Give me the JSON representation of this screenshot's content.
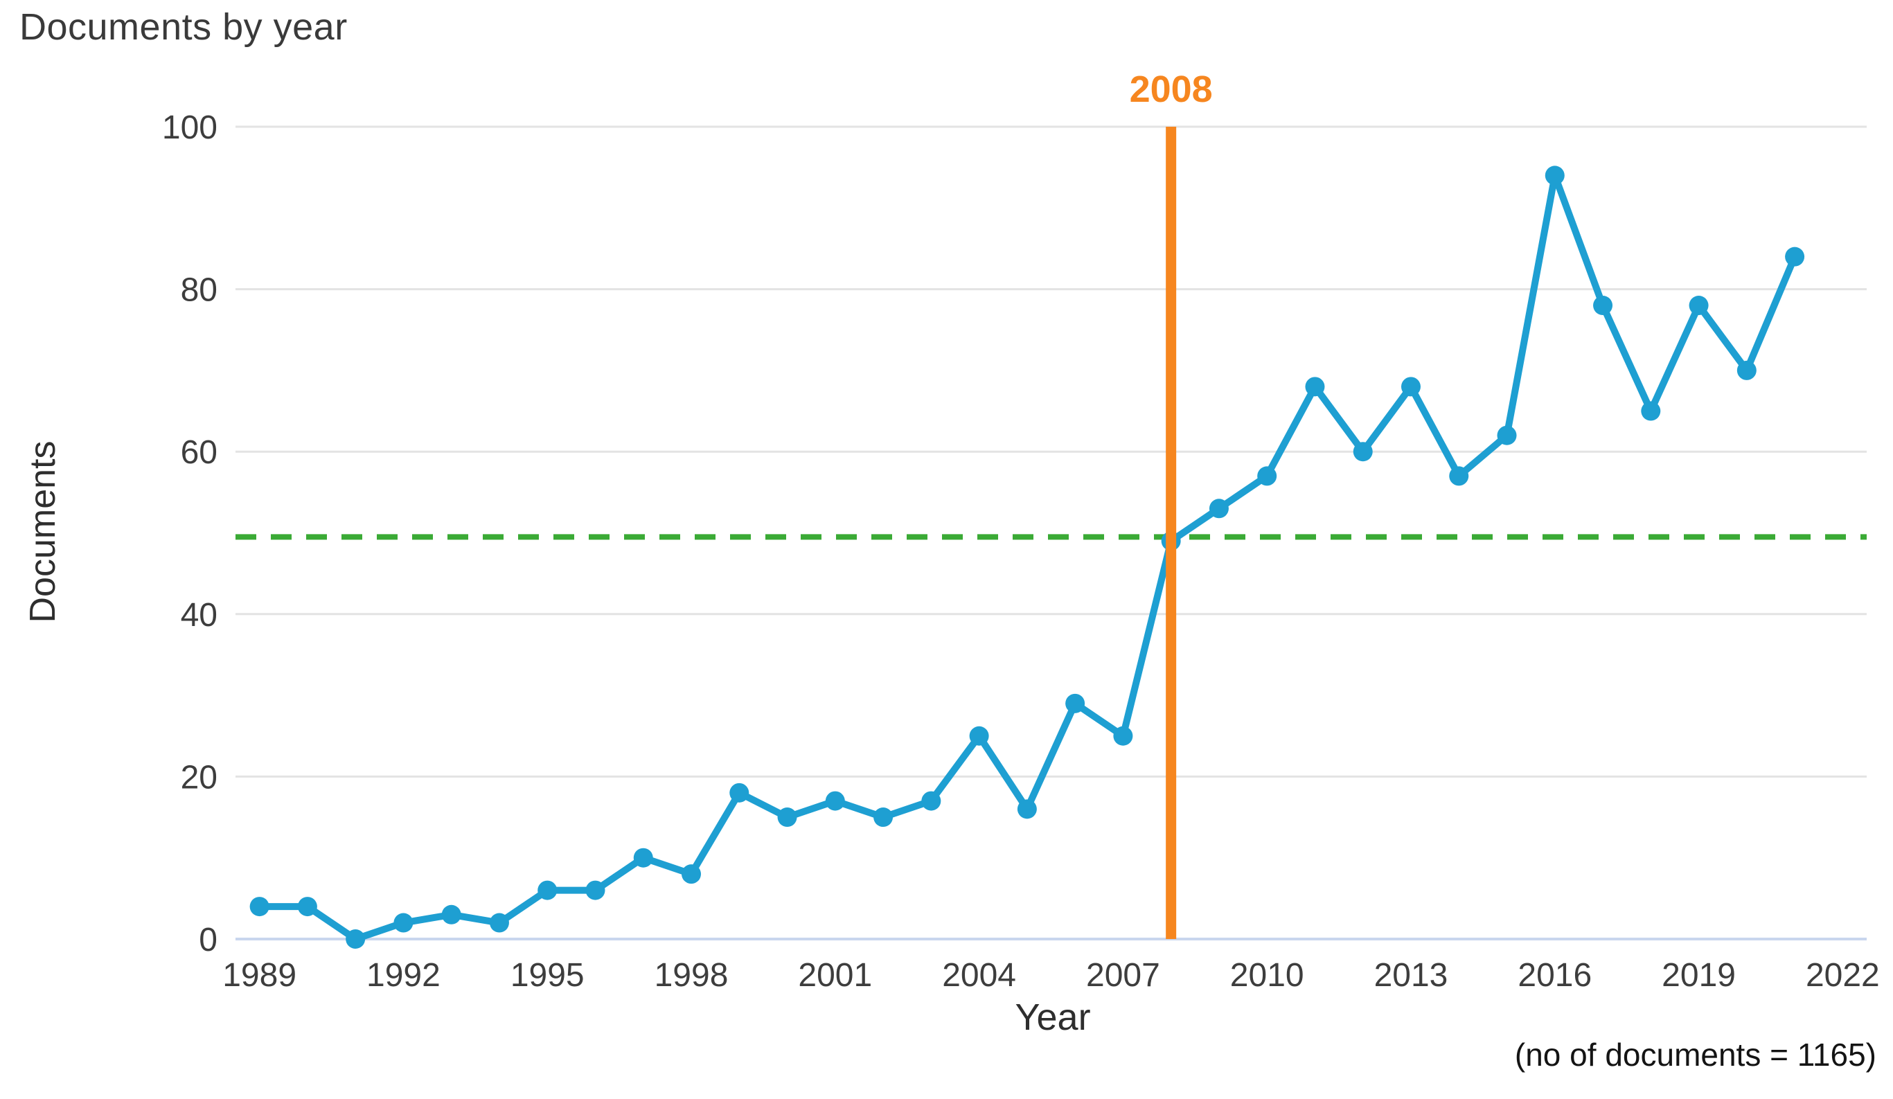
{
  "title": "Documents by year",
  "footnote": "(no of documents = 1165)",
  "colors": {
    "line": "#1e9fd2",
    "marker": "#1e9fd2",
    "annotation_orange": "#f6861f",
    "threshold_green": "#3aaa35",
    "gridline": "#e3e3e3",
    "axis_zero_line": "#c9d6ee",
    "tick_text": "#3d3d3d"
  },
  "chart_data": {
    "type": "line",
    "title": "Documents by year",
    "xlabel": "Year",
    "ylabel": "Documents",
    "legend": "none",
    "grid": "horizontal-only",
    "xlim": [
      1988.5,
      2022.5
    ],
    "ylim": [
      0,
      100
    ],
    "x_ticks": [
      1989,
      1992,
      1995,
      1998,
      2001,
      2004,
      2007,
      2010,
      2013,
      2016,
      2019,
      2022
    ],
    "y_ticks": [
      0,
      20,
      40,
      60,
      80,
      100
    ],
    "series": [
      {
        "name": "Documents",
        "x": [
          1989,
          1990,
          1991,
          1992,
          1993,
          1994,
          1995,
          1996,
          1997,
          1998,
          1999,
          2000,
          2001,
          2002,
          2003,
          2004,
          2005,
          2006,
          2007,
          2008,
          2009,
          2010,
          2011,
          2012,
          2013,
          2014,
          2015,
          2016,
          2017,
          2018,
          2019,
          2020,
          2021
        ],
        "values": [
          4,
          4,
          0,
          2,
          3,
          2,
          6,
          6,
          10,
          8,
          18,
          15,
          17,
          15,
          17,
          25,
          16,
          29,
          25,
          49,
          53,
          57,
          68,
          60,
          68,
          57,
          62,
          94,
          78,
          65,
          78,
          70,
          84
        ]
      }
    ],
    "annotations": {
      "vline": {
        "x": 2008,
        "label": "2008"
      },
      "hline": {
        "y": 49.5,
        "style": "dashed"
      }
    },
    "footnote_total_documents": "1165"
  }
}
